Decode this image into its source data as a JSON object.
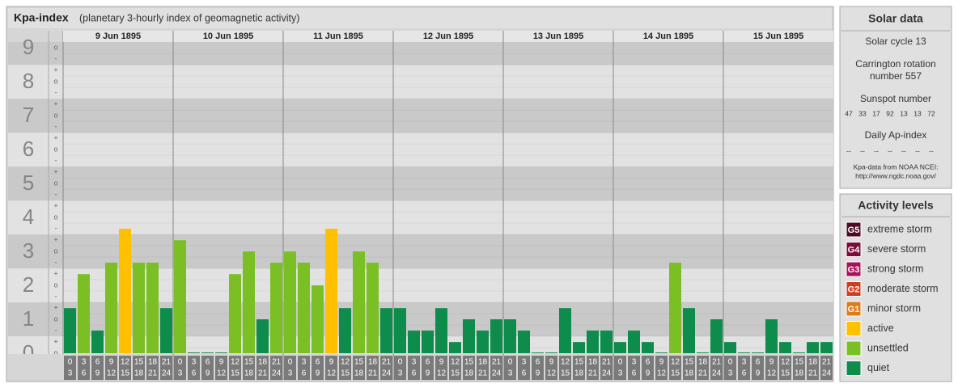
{
  "header": {
    "title": "Kpa-index",
    "subtitle": "(planetary 3-hourly index of geomagnetic activity)"
  },
  "chart_data": {
    "type": "bar",
    "days": [
      "9 Jun 1895",
      "10 Jun 1895",
      "11 Jun 1895",
      "12 Jun 1895",
      "13 Jun 1895",
      "14 Jun 1895",
      "15 Jun 1895"
    ],
    "hour_ranges": [
      [
        "0",
        "3"
      ],
      [
        "3",
        "6"
      ],
      [
        "6",
        "9"
      ],
      [
        "9",
        "12"
      ],
      [
        "12",
        "15"
      ],
      [
        "15",
        "18"
      ],
      [
        "18",
        "21"
      ],
      [
        "21",
        "24"
      ]
    ],
    "values": [
      1.33,
      2.33,
      0.67,
      2.67,
      3.67,
      2.67,
      2.67,
      1.33,
      3.33,
      0,
      0,
      0,
      2.33,
      3,
      1,
      2.67,
      3,
      2.67,
      2,
      3.67,
      1.33,
      3,
      2.67,
      1.33,
      1.33,
      0.67,
      0.67,
      1.33,
      0.33,
      1,
      0.67,
      1,
      1,
      0.67,
      0,
      0,
      1.33,
      0.33,
      0.67,
      0.67,
      0.33,
      0.67,
      0.33,
      0,
      2.67,
      1.33,
      0,
      1,
      0.33,
      0,
      0,
      1,
      0.33,
      0,
      0.33,
      0.33
    ],
    "colors": [
      "#0e8c4c",
      "#7ac025",
      "#0e8c4c",
      "#7ac025",
      "#ffc000",
      "#7ac025",
      "#7ac025",
      "#0e8c4c",
      "#7ac025",
      "#0e8c4c",
      "#0e8c4c",
      "#0e8c4c",
      "#7ac025",
      "#7ac025",
      "#0e8c4c",
      "#7ac025",
      "#7ac025",
      "#7ac025",
      "#7ac025",
      "#ffc000",
      "#0e8c4c",
      "#7ac025",
      "#7ac025",
      "#0e8c4c",
      "#0e8c4c",
      "#0e8c4c",
      "#0e8c4c",
      "#0e8c4c",
      "#0e8c4c",
      "#0e8c4c",
      "#0e8c4c",
      "#0e8c4c",
      "#0e8c4c",
      "#0e8c4c",
      "#0e8c4c",
      "#0e8c4c",
      "#0e8c4c",
      "#0e8c4c",
      "#0e8c4c",
      "#0e8c4c",
      "#0e8c4c",
      "#0e8c4c",
      "#0e8c4c",
      "#0e8c4c",
      "#7ac025",
      "#0e8c4c",
      "#0e8c4c",
      "#0e8c4c",
      "#0e8c4c",
      "#0e8c4c",
      "#0e8c4c",
      "#0e8c4c",
      "#0e8c4c",
      "#0e8c4c",
      "#0e8c4c",
      "#0e8c4c"
    ],
    "ylim": [
      0,
      9.17
    ],
    "yticks": [
      0,
      1,
      2,
      3,
      4,
      5,
      6,
      7,
      8,
      9
    ],
    "minor_tick_labels": [
      "-",
      "o",
      "+"
    ]
  },
  "solar_data": {
    "title": "Solar data",
    "cycle": "Solar cycle 13",
    "carrington": [
      "Carrington rotation",
      "number 557"
    ],
    "sunspot_title": "Sunspot number",
    "sunspot": [
      47,
      33,
      17,
      92,
      13,
      13,
      72
    ],
    "ap_title": "Daily Ap-index",
    "ap": [
      "--",
      "--",
      "--",
      "--",
      "--",
      "--",
      "--"
    ],
    "source": "Kpa-data from NOAA NCEI:",
    "url": "http://www.ngdc.noaa.gov/"
  },
  "activity": {
    "title": "Activity levels",
    "items": [
      {
        "badge": "G5",
        "label": "extreme storm",
        "color": "#4d0a26"
      },
      {
        "badge": "G4",
        "label": "severe storm",
        "color": "#7a0b3a"
      },
      {
        "badge": "G3",
        "label": "strong storm",
        "color": "#a8125a"
      },
      {
        "badge": "G2",
        "label": "moderate storm",
        "color": "#d23c1e"
      },
      {
        "badge": "G1",
        "label": "minor storm",
        "color": "#e07b1a"
      },
      {
        "label": "active",
        "color": "#ffc000"
      },
      {
        "label": "unsettled",
        "color": "#7ac025"
      },
      {
        "label": "quiet",
        "color": "#0e8c4c"
      }
    ]
  }
}
